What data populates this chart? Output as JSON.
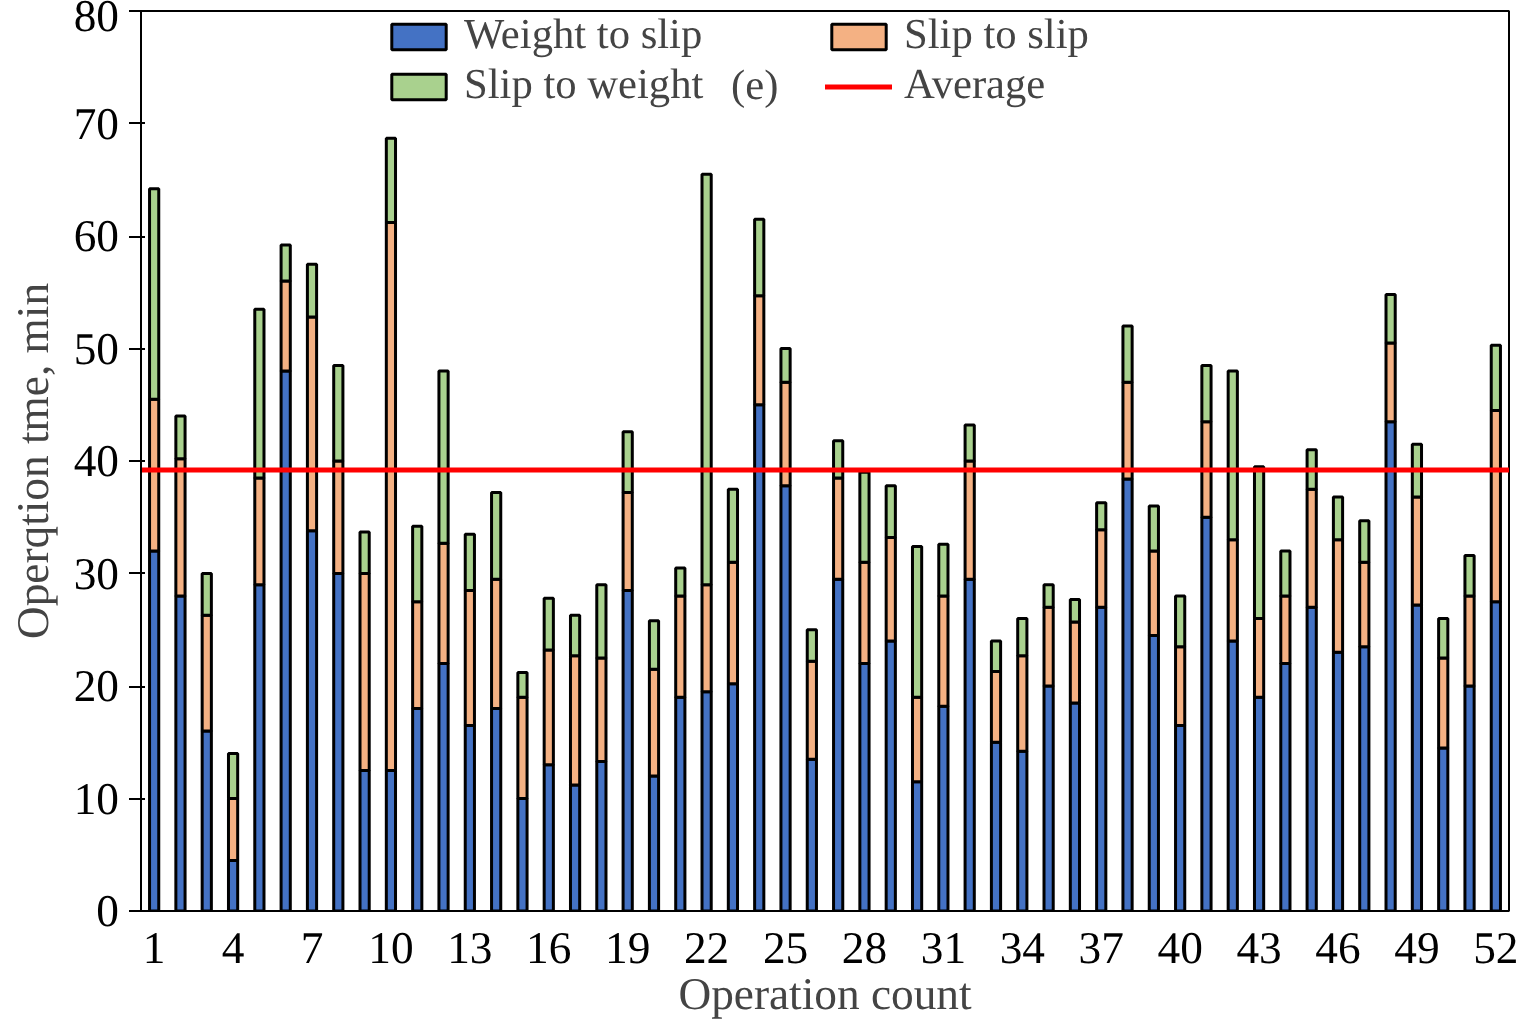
{
  "chart_data": {
    "type": "bar",
    "stacked": true,
    "xlabel": "Operation count",
    "ylabel": "Operqtion tme, min",
    "categories": [
      "1",
      null,
      null,
      "4",
      null,
      null,
      "7",
      null,
      null,
      "10",
      null,
      null,
      "13",
      null,
      null,
      "16",
      null,
      null,
      "19",
      null,
      null,
      "22",
      null,
      null,
      "25",
      null,
      null,
      "28",
      null,
      null,
      "31",
      null,
      null,
      "34",
      null,
      null,
      "37",
      null,
      null,
      "40",
      null,
      null,
      "43",
      null,
      null,
      "46",
      null,
      null,
      "49",
      null,
      null,
      "52"
    ],
    "series": [
      {
        "name": "Weight to slip",
        "color": "#4472c4",
        "values": [
          32,
          28,
          16,
          4.5,
          29,
          48,
          33.8,
          30,
          12.5,
          12.5,
          18,
          22,
          16.5,
          18,
          10,
          13,
          11.2,
          13.3,
          28.5,
          12,
          19,
          19.5,
          20.2,
          45,
          37.8,
          13.5,
          29.5,
          22,
          24,
          11.5,
          18.2,
          29.5,
          15,
          14.2,
          20,
          18.5,
          27,
          38.4,
          24.5,
          16.5,
          35,
          24,
          19,
          22,
          27,
          23,
          23.5,
          43.5,
          27.2,
          14.5,
          20,
          27.5
        ]
      },
      {
        "name": "Slip to slip",
        "color": "#f4b183",
        "values": [
          13.5,
          12.2,
          10.3,
          5.5,
          9.5,
          8,
          19,
          10,
          17.5,
          48.7,
          9.5,
          10.7,
          12,
          11.5,
          9,
          10.2,
          11.5,
          9.2,
          8.7,
          9.5,
          9,
          9.5,
          10.8,
          9.7,
          9.2,
          8.7,
          9,
          9,
          9.2,
          7.5,
          9.8,
          10.5,
          6.3,
          8.5,
          7,
          7.2,
          6.9,
          8.6,
          7.5,
          7,
          8.5,
          9,
          7,
          6,
          10.5,
          10,
          7.5,
          7,
          9.6,
          8,
          8,
          17
        ]
      },
      {
        "name": "Slip to weight",
        "color": "#a9d18e",
        "values": [
          18.7,
          3.8,
          3.7,
          4,
          15,
          3.2,
          4.7,
          8.5,
          3.7,
          7.5,
          6.7,
          15.3,
          5,
          7.7,
          2.2,
          4.6,
          3.6,
          6.5,
          5.4,
          4.3,
          2.5,
          36.5,
          6.5,
          6.8,
          3,
          2.8,
          3.3,
          8,
          4.6,
          13.4,
          4.6,
          3.2,
          2.7,
          3.3,
          2,
          2,
          2.4,
          5,
          4,
          4.5,
          5,
          15,
          13.5,
          4,
          3.5,
          3.8,
          3.7,
          4.3,
          4.7,
          3.5,
          3.6,
          5.8
        ]
      }
    ],
    "ref_lines": [
      {
        "axis": "y",
        "value": 39.2,
        "label": "Average",
        "color": "#ff0000"
      }
    ],
    "annotations": [
      "(e)"
    ],
    "ylim": [
      0,
      80
    ],
    "yticks": [
      0,
      10,
      20,
      30,
      40,
      50,
      60,
      70,
      80
    ],
    "grid": false,
    "legend": "top"
  }
}
